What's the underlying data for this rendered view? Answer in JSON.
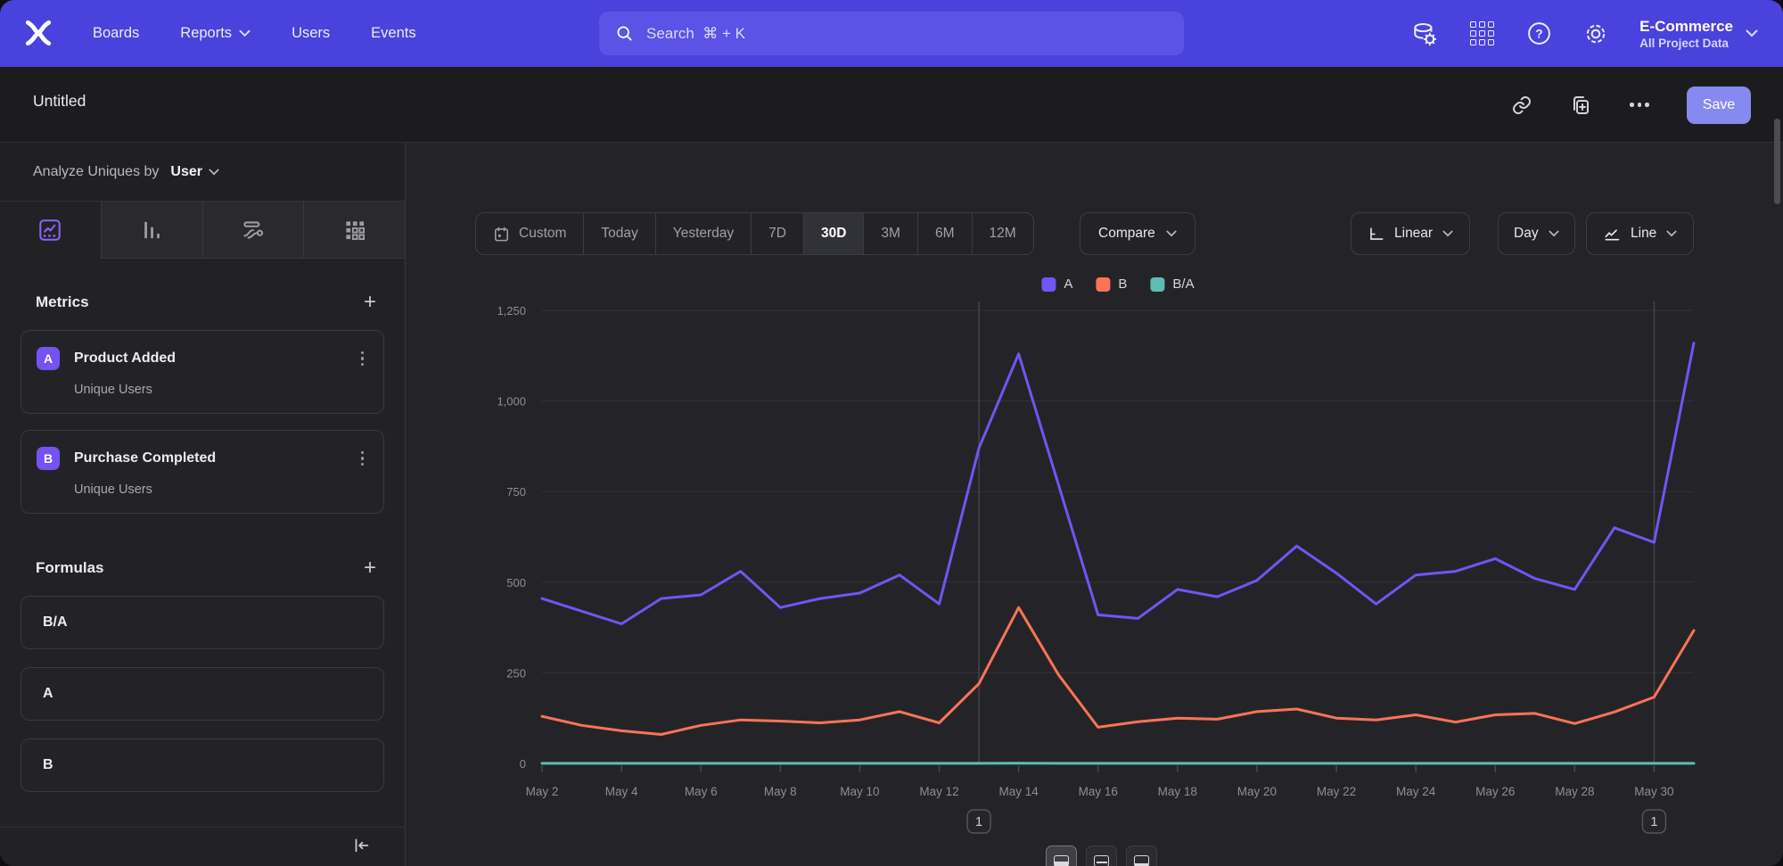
{
  "nav": {
    "items": [
      "Boards",
      "Reports",
      "Users",
      "Events"
    ],
    "search": {
      "placeholder": "Search  ⌘ + K"
    },
    "project": {
      "name": "E-Commerce",
      "subtitle": "All Project Data"
    }
  },
  "header": {
    "title": "Untitled",
    "save_label": "Save"
  },
  "sidebar": {
    "analyze_label": "Analyze Uniques by",
    "analyze_value": "User",
    "metrics": {
      "title": "Metrics",
      "items": [
        {
          "badge": "A",
          "name": "Product Added",
          "subtitle": "Unique Users"
        },
        {
          "badge": "B",
          "name": "Purchase Completed",
          "subtitle": "Unique Users"
        }
      ]
    },
    "formulas": {
      "title": "Formulas",
      "items": [
        "B/A",
        "A",
        "B"
      ]
    }
  },
  "toolbar": {
    "date_ranges": [
      "Custom",
      "Today",
      "Yesterday",
      "7D",
      "30D",
      "3M",
      "6M",
      "12M"
    ],
    "selected_range": "30D",
    "compare_label": "Compare",
    "scale_label": "Linear",
    "interval_label": "Day",
    "chart_type_label": "Line"
  },
  "chart_data": {
    "type": "line",
    "title": "",
    "xlabel": "",
    "ylabel": "",
    "ylim": [
      0,
      1250
    ],
    "grid": true,
    "legend_position": "top-center",
    "y_ticks": [
      {
        "label": "0",
        "value": 0
      },
      {
        "label": "250",
        "value": 250
      },
      {
        "label": "500",
        "value": 500
      },
      {
        "label": "750",
        "value": 750
      },
      {
        "label": "1,000",
        "value": 1000
      },
      {
        "label": "1,250",
        "value": 1250
      }
    ],
    "categories": [
      "May 2",
      "May 3",
      "May 4",
      "May 5",
      "May 6",
      "May 7",
      "May 8",
      "May 9",
      "May 10",
      "May 11",
      "May 12",
      "May 13",
      "May 14",
      "May 15",
      "May 16",
      "May 17",
      "May 18",
      "May 19",
      "May 20",
      "May 21",
      "May 22",
      "May 23",
      "May 24",
      "May 25",
      "May 26",
      "May 27",
      "May 28",
      "May 29",
      "May 30",
      "May 31"
    ],
    "x_tick_every": 2,
    "series": [
      {
        "name": "A",
        "metric": "Product Added · Unique Users",
        "color": "#7155f5",
        "dotted": false,
        "values": [
          455,
          420,
          385,
          455,
          465,
          530,
          430,
          455,
          470,
          520,
          440,
          870,
          1130,
          770,
          410,
          400,
          480,
          460,
          505,
          600,
          525,
          440,
          520,
          530,
          565,
          510,
          480,
          650,
          610,
          1160
        ]
      },
      {
        "name": "B",
        "metric": "Purchase Completed · Unique Users",
        "color": "#fc7357",
        "dotted": false,
        "values": [
          130,
          105,
          90,
          80,
          105,
          120,
          117,
          112,
          120,
          143,
          112,
          220,
          430,
          245,
          100,
          115,
          125,
          122,
          143,
          150,
          125,
          120,
          134,
          114,
          134,
          138,
          110,
          142,
          183,
          367
        ]
      },
      {
        "name": "B/A",
        "metric": "Formula B/A",
        "color": "#5ebdb2",
        "dotted": true,
        "values": [
          0.29,
          0.25,
          0.23,
          0.18,
          0.23,
          0.23,
          0.27,
          0.25,
          0.26,
          0.28,
          0.25,
          0.25,
          0.38,
          0.32,
          0.24,
          0.29,
          0.26,
          0.27,
          0.28,
          0.25,
          0.24,
          0.27,
          0.26,
          0.22,
          0.24,
          0.27,
          0.23,
          0.22,
          0.3,
          0.32
        ]
      }
    ]
  },
  "annotations": [
    {
      "label": "1",
      "category": "May 13"
    },
    {
      "label": "1",
      "category": "May 30"
    }
  ],
  "colors": {
    "nav_bg": "#4a42dc",
    "accent_purple": "#7453f2",
    "save_bg": "#8689f0",
    "series_a": "#7155f5",
    "series_b": "#fc7357",
    "series_ba": "#5ebdb2"
  }
}
